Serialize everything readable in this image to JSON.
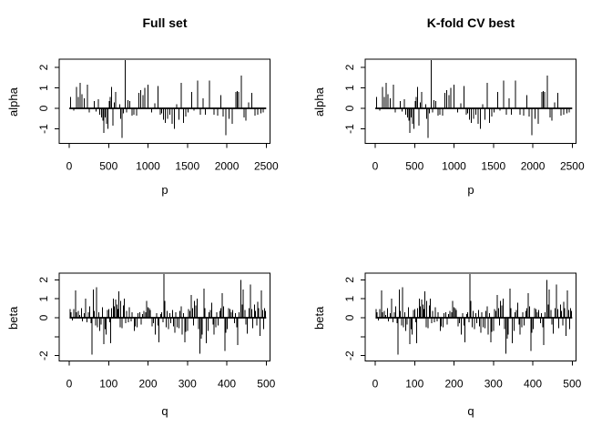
{
  "figure": {
    "background": "#ffffff",
    "line_color": "#000000",
    "columns": [
      "Full set",
      "K-fold CV best"
    ],
    "rows": [
      "alpha vs p",
      "beta vs q"
    ]
  },
  "chart_data": {
    "type": "bar",
    "subtype": "vertical-spike-plot (R type='h')",
    "grid": false,
    "legend": null,
    "panels": [
      {
        "id": "full-set-alpha",
        "title": "Full set",
        "xlabel": "p",
        "ylabel": "alpha",
        "series_ref": "alpha",
        "xlim": [
          0,
          2500
        ],
        "ylim": [
          -1.7,
          2.4
        ],
        "xticks": [
          0,
          500,
          1000,
          1500,
          2000,
          2500
        ],
        "yticks": [
          -1,
          0,
          1,
          2
        ],
        "ytick_labels": [
          "-1",
          "0",
          "1",
          "2"
        ]
      },
      {
        "id": "kfold-cv-alpha",
        "title": "K-fold CV best",
        "xlabel": "p",
        "ylabel": "alpha",
        "series_ref": "alpha",
        "xlim": [
          0,
          2500
        ],
        "ylim": [
          -1.7,
          2.4
        ],
        "xticks": [
          0,
          500,
          1000,
          1500,
          2000,
          2500
        ],
        "yticks": [
          -1,
          0,
          1,
          2
        ],
        "ytick_labels": [
          "-1",
          "0",
          "1",
          "2"
        ]
      },
      {
        "id": "full-set-beta",
        "title": "",
        "xlabel": "q",
        "ylabel": "beta",
        "series_ref": "beta",
        "xlim": [
          0,
          500
        ],
        "ylim": [
          -2.3,
          2.4
        ],
        "xticks": [
          0,
          100,
          200,
          300,
          400,
          500
        ],
        "yticks": [
          -2,
          -1,
          0,
          1,
          2
        ],
        "ytick_labels": [
          "-2",
          "",
          "0",
          "1",
          "2"
        ]
      },
      {
        "id": "kfold-cv-beta",
        "title": "",
        "xlabel": "q",
        "ylabel": "beta",
        "series_ref": "beta",
        "xlim": [
          0,
          500
        ],
        "ylim": [
          -2.3,
          2.4
        ],
        "xticks": [
          0,
          100,
          200,
          300,
          400,
          500
        ],
        "yticks": [
          -2,
          -1,
          0,
          1,
          2
        ],
        "ytick_labels": [
          "-2",
          "",
          "0",
          "1",
          "2"
        ]
      }
    ],
    "series": {
      "alpha": [
        [
          18,
          0.55
        ],
        [
          55,
          -0.12
        ],
        [
          95,
          1.05
        ],
        [
          115,
          0.55
        ],
        [
          140,
          1.25
        ],
        [
          162,
          0.7
        ],
        [
          188,
          0.5
        ],
        [
          232,
          1.15
        ],
        [
          252,
          -0.2
        ],
        [
          320,
          0.35
        ],
        [
          342,
          -0.15
        ],
        [
          368,
          0.45
        ],
        [
          390,
          -0.3
        ],
        [
          412,
          -0.45
        ],
        [
          428,
          -0.6
        ],
        [
          442,
          -1.2
        ],
        [
          458,
          -0.45
        ],
        [
          475,
          -0.75
        ],
        [
          492,
          -1.0
        ],
        [
          508,
          0.35
        ],
        [
          520,
          0.55
        ],
        [
          535,
          1.05
        ],
        [
          552,
          -0.85
        ],
        [
          570,
          0.3
        ],
        [
          590,
          0.8
        ],
        [
          640,
          0.2
        ],
        [
          655,
          -0.5
        ],
        [
          672,
          -1.45
        ],
        [
          690,
          -0.25
        ],
        [
          712,
          2.35
        ],
        [
          728,
          -0.2
        ],
        [
          748,
          0.4
        ],
        [
          770,
          0.35
        ],
        [
          795,
          -0.35
        ],
        [
          820,
          -0.3
        ],
        [
          855,
          -0.35
        ],
        [
          885,
          0.75
        ],
        [
          910,
          0.9
        ],
        [
          935,
          0.65
        ],
        [
          960,
          1.0
        ],
        [
          1000,
          1.15
        ],
        [
          1045,
          -0.2
        ],
        [
          1085,
          0.25
        ],
        [
          1125,
          1.1
        ],
        [
          1155,
          -0.3
        ],
        [
          1175,
          -0.25
        ],
        [
          1195,
          -0.55
        ],
        [
          1220,
          -0.7
        ],
        [
          1248,
          -0.5
        ],
        [
          1278,
          -0.3
        ],
        [
          1308,
          -0.75
        ],
        [
          1335,
          -1.0
        ],
        [
          1362,
          0.2
        ],
        [
          1393,
          -0.55
        ],
        [
          1424,
          1.25
        ],
        [
          1451,
          -0.7
        ],
        [
          1478,
          -0.4
        ],
        [
          1510,
          -0.2
        ],
        [
          1555,
          0.8
        ],
        [
          1586,
          -0.12
        ],
        [
          1632,
          1.35
        ],
        [
          1663,
          -0.3
        ],
        [
          1700,
          0.5
        ],
        [
          1726,
          -0.3
        ],
        [
          1778,
          1.35
        ],
        [
          1835,
          -0.3
        ],
        [
          1885,
          -0.35
        ],
        [
          1924,
          0.65
        ],
        [
          1951,
          -0.4
        ],
        [
          1990,
          -1.3
        ],
        [
          2028,
          -0.5
        ],
        [
          2066,
          -0.75
        ],
        [
          2116,
          0.8
        ],
        [
          2132,
          0.85
        ],
        [
          2147,
          0.8
        ],
        [
          2182,
          1.6
        ],
        [
          2220,
          -0.45
        ],
        [
          2240,
          -0.6
        ],
        [
          2278,
          0.3
        ],
        [
          2316,
          0.75
        ],
        [
          2355,
          -0.35
        ],
        [
          2393,
          -0.3
        ],
        [
          2432,
          -0.25
        ],
        [
          2462,
          -0.2
        ]
      ],
      "beta": [
        [
          2,
          0.45
        ],
        [
          5,
          0.3
        ],
        [
          8,
          -0.15
        ],
        [
          12,
          0.45
        ],
        [
          16,
          1.45
        ],
        [
          19,
          0.3
        ],
        [
          23,
          0.35
        ],
        [
          27,
          0.15
        ],
        [
          31,
          0.5
        ],
        [
          34,
          -0.2
        ],
        [
          38,
          0.25
        ],
        [
          42,
          1.0
        ],
        [
          45,
          -0.25
        ],
        [
          48,
          0.3
        ],
        [
          52,
          0.6
        ],
        [
          55,
          -0.3
        ],
        [
          58,
          -1.95
        ],
        [
          61,
          1.5
        ],
        [
          64,
          0.35
        ],
        [
          67,
          -0.4
        ],
        [
          69,
          1.6
        ],
        [
          72,
          -0.5
        ],
        [
          75,
          0.3
        ],
        [
          78,
          -0.7
        ],
        [
          81,
          -0.35
        ],
        [
          84,
          0.55
        ],
        [
          88,
          -1.4
        ],
        [
          91,
          -0.6
        ],
        [
          94,
          -0.9
        ],
        [
          97,
          0.4
        ],
        [
          100,
          0.45
        ],
        [
          103,
          -0.25
        ],
        [
          105,
          -1.35
        ],
        [
          108,
          0.5
        ],
        [
          112,
          1.0
        ],
        [
          115,
          0.6
        ],
        [
          118,
          0.95
        ],
        [
          121,
          0.7
        ],
        [
          124,
          0.45
        ],
        [
          126,
          1.4
        ],
        [
          129,
          -0.5
        ],
        [
          131,
          0.9
        ],
        [
          134,
          -0.55
        ],
        [
          137,
          0.65
        ],
        [
          140,
          1.0
        ],
        [
          143,
          -0.3
        ],
        [
          146,
          0.35
        ],
        [
          150,
          -0.25
        ],
        [
          153,
          0.55
        ],
        [
          157,
          -0.2
        ],
        [
          160,
          0.3
        ],
        [
          165,
          -0.7
        ],
        [
          168,
          -0.45
        ],
        [
          172,
          -0.5
        ],
        [
          175,
          0.25
        ],
        [
          179,
          0.3
        ],
        [
          183,
          -0.35
        ],
        [
          186,
          0.2
        ],
        [
          190,
          0.35
        ],
        [
          194,
          0.3
        ],
        [
          197,
          0.9
        ],
        [
          200,
          0.55
        ],
        [
          203,
          0.5
        ],
        [
          206,
          0.4
        ],
        [
          210,
          -0.45
        ],
        [
          214,
          -0.3
        ],
        [
          218,
          -0.9
        ],
        [
          222,
          0.25
        ],
        [
          225,
          -0.4
        ],
        [
          228,
          -1.3
        ],
        [
          232,
          0.2
        ],
        [
          235,
          0.3
        ],
        [
          238,
          -0.25
        ],
        [
          240,
          2.3
        ],
        [
          243,
          0.9
        ],
        [
          246,
          -0.5
        ],
        [
          249,
          0.35
        ],
        [
          252,
          -0.6
        ],
        [
          255,
          0.25
        ],
        [
          258,
          -0.3
        ],
        [
          262,
          0.4
        ],
        [
          265,
          -0.45
        ],
        [
          268,
          -0.8
        ],
        [
          271,
          0.3
        ],
        [
          274,
          -0.5
        ],
        [
          278,
          -0.55
        ],
        [
          281,
          0.35
        ],
        [
          284,
          0.6
        ],
        [
          287,
          -0.9
        ],
        [
          290,
          0.25
        ],
        [
          293,
          -1.3
        ],
        [
          296,
          -0.75
        ],
        [
          300,
          -0.7
        ],
        [
          303,
          0.45
        ],
        [
          306,
          0.35
        ],
        [
          310,
          1.2
        ],
        [
          313,
          0.5
        ],
        [
          316,
          -0.4
        ],
        [
          318,
          0.9
        ],
        [
          321,
          0.65
        ],
        [
          325,
          1.0
        ],
        [
          328,
          -0.6
        ],
        [
          332,
          -1.9
        ],
        [
          335,
          -1.1
        ],
        [
          338,
          -0.9
        ],
        [
          342,
          1.55
        ],
        [
          345,
          0.5
        ],
        [
          348,
          -1.35
        ],
        [
          352,
          -0.7
        ],
        [
          355,
          0.3
        ],
        [
          358,
          0.4
        ],
        [
          362,
          0.8
        ],
        [
          365,
          -0.35
        ],
        [
          368,
          -0.9
        ],
        [
          372,
          -0.5
        ],
        [
          375,
          0.3
        ],
        [
          378,
          -0.4
        ],
        [
          382,
          0.35
        ],
        [
          385,
          0.5
        ],
        [
          388,
          1.3
        ],
        [
          392,
          0.6
        ],
        [
          395,
          -1.75
        ],
        [
          398,
          -0.8
        ],
        [
          401,
          -0.6
        ],
        [
          404,
          0.5
        ],
        [
          408,
          0.45
        ],
        [
          412,
          0.3
        ],
        [
          415,
          0.4
        ],
        [
          419,
          -0.3
        ],
        [
          422,
          0.25
        ],
        [
          425,
          -0.5
        ],
        [
          428,
          -1.45
        ],
        [
          431,
          0.3
        ],
        [
          436,
          2.0
        ],
        [
          439,
          0.7
        ],
        [
          442,
          1.5
        ],
        [
          446,
          0.4
        ],
        [
          449,
          -0.35
        ],
        [
          452,
          -0.85
        ],
        [
          456,
          0.5
        ],
        [
          460,
          1.75
        ],
        [
          463,
          0.45
        ],
        [
          466,
          -0.55
        ],
        [
          470,
          0.7
        ],
        [
          473,
          0.35
        ],
        [
          476,
          -0.4
        ],
        [
          478,
          0.85
        ],
        [
          481,
          0.5
        ],
        [
          484,
          -0.95
        ],
        [
          488,
          1.45
        ],
        [
          491,
          0.4
        ],
        [
          493,
          -0.6
        ],
        [
          496,
          0.5
        ],
        [
          498,
          0.35
        ]
      ]
    }
  }
}
